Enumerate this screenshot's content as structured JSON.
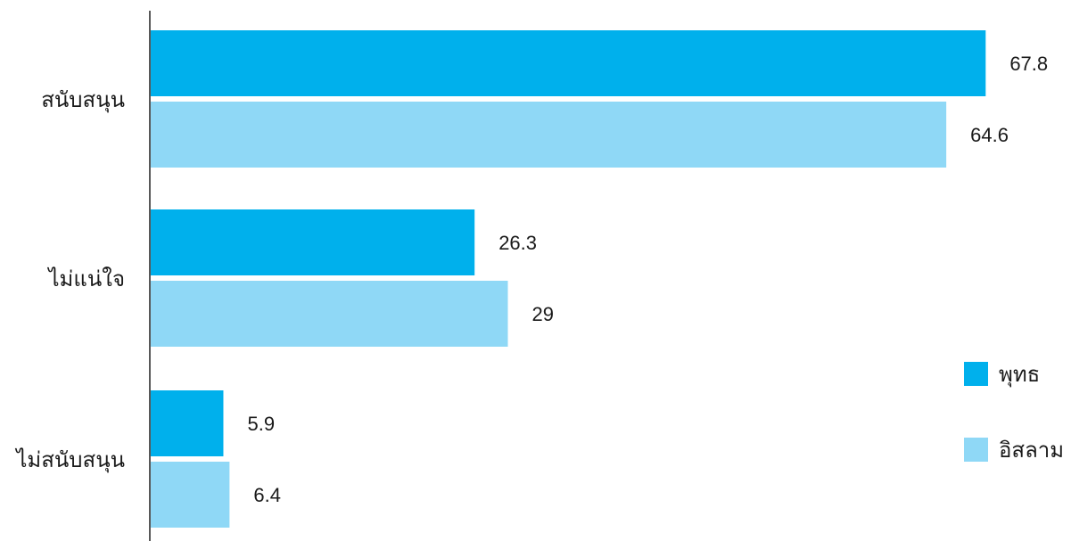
{
  "chart_data": {
    "type": "bar",
    "orientation": "horizontal",
    "categories": [
      "สนับสนุน",
      "ไม่แน่ใจ",
      "ไม่สนับสนุน"
    ],
    "series": [
      {
        "name": "พุทธ",
        "values": [
          67.8,
          26.3,
          5.9
        ],
        "color": "#00b0ec"
      },
      {
        "name": "อิสลาม",
        "values": [
          64.6,
          29,
          6.4
        ],
        "color": "#8fd8f6"
      }
    ],
    "xlim": [
      0,
      100
    ],
    "grid": false,
    "legend": "right"
  }
}
